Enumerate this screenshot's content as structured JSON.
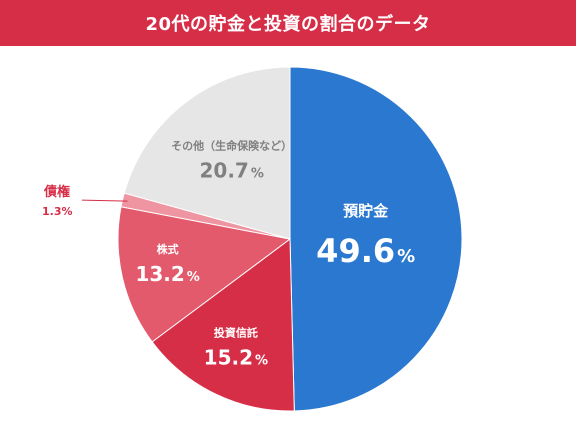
{
  "header": {
    "title": "20代の貯金と投資の割合のデータ"
  },
  "chart_data": {
    "type": "pie",
    "title": "20代の貯金と投資の割合のデータ",
    "slices": [
      {
        "label": "預貯金",
        "value": 49.6,
        "value_text": "49.6",
        "unit": "%",
        "color": "#2a78cf"
      },
      {
        "label": "投資信託",
        "value": 15.2,
        "value_text": "15.2",
        "unit": "%",
        "color": "#d72e48"
      },
      {
        "label": "株式",
        "value": 13.2,
        "value_text": "13.2",
        "unit": "%",
        "color": "#e25a6c"
      },
      {
        "label": "債権",
        "value": 1.3,
        "value_text": "1.3",
        "unit": "%",
        "color": "#ee95a1"
      },
      {
        "label": "その他（生命保険など）",
        "value": 20.7,
        "value_text": "20.7",
        "unit": "%",
        "color": "#e6e6e6"
      }
    ],
    "start": "12 o'clock",
    "direction": "clockwise",
    "annotation": {
      "label": "債権",
      "value_text": "1.3%",
      "color": "#d72e48"
    }
  }
}
